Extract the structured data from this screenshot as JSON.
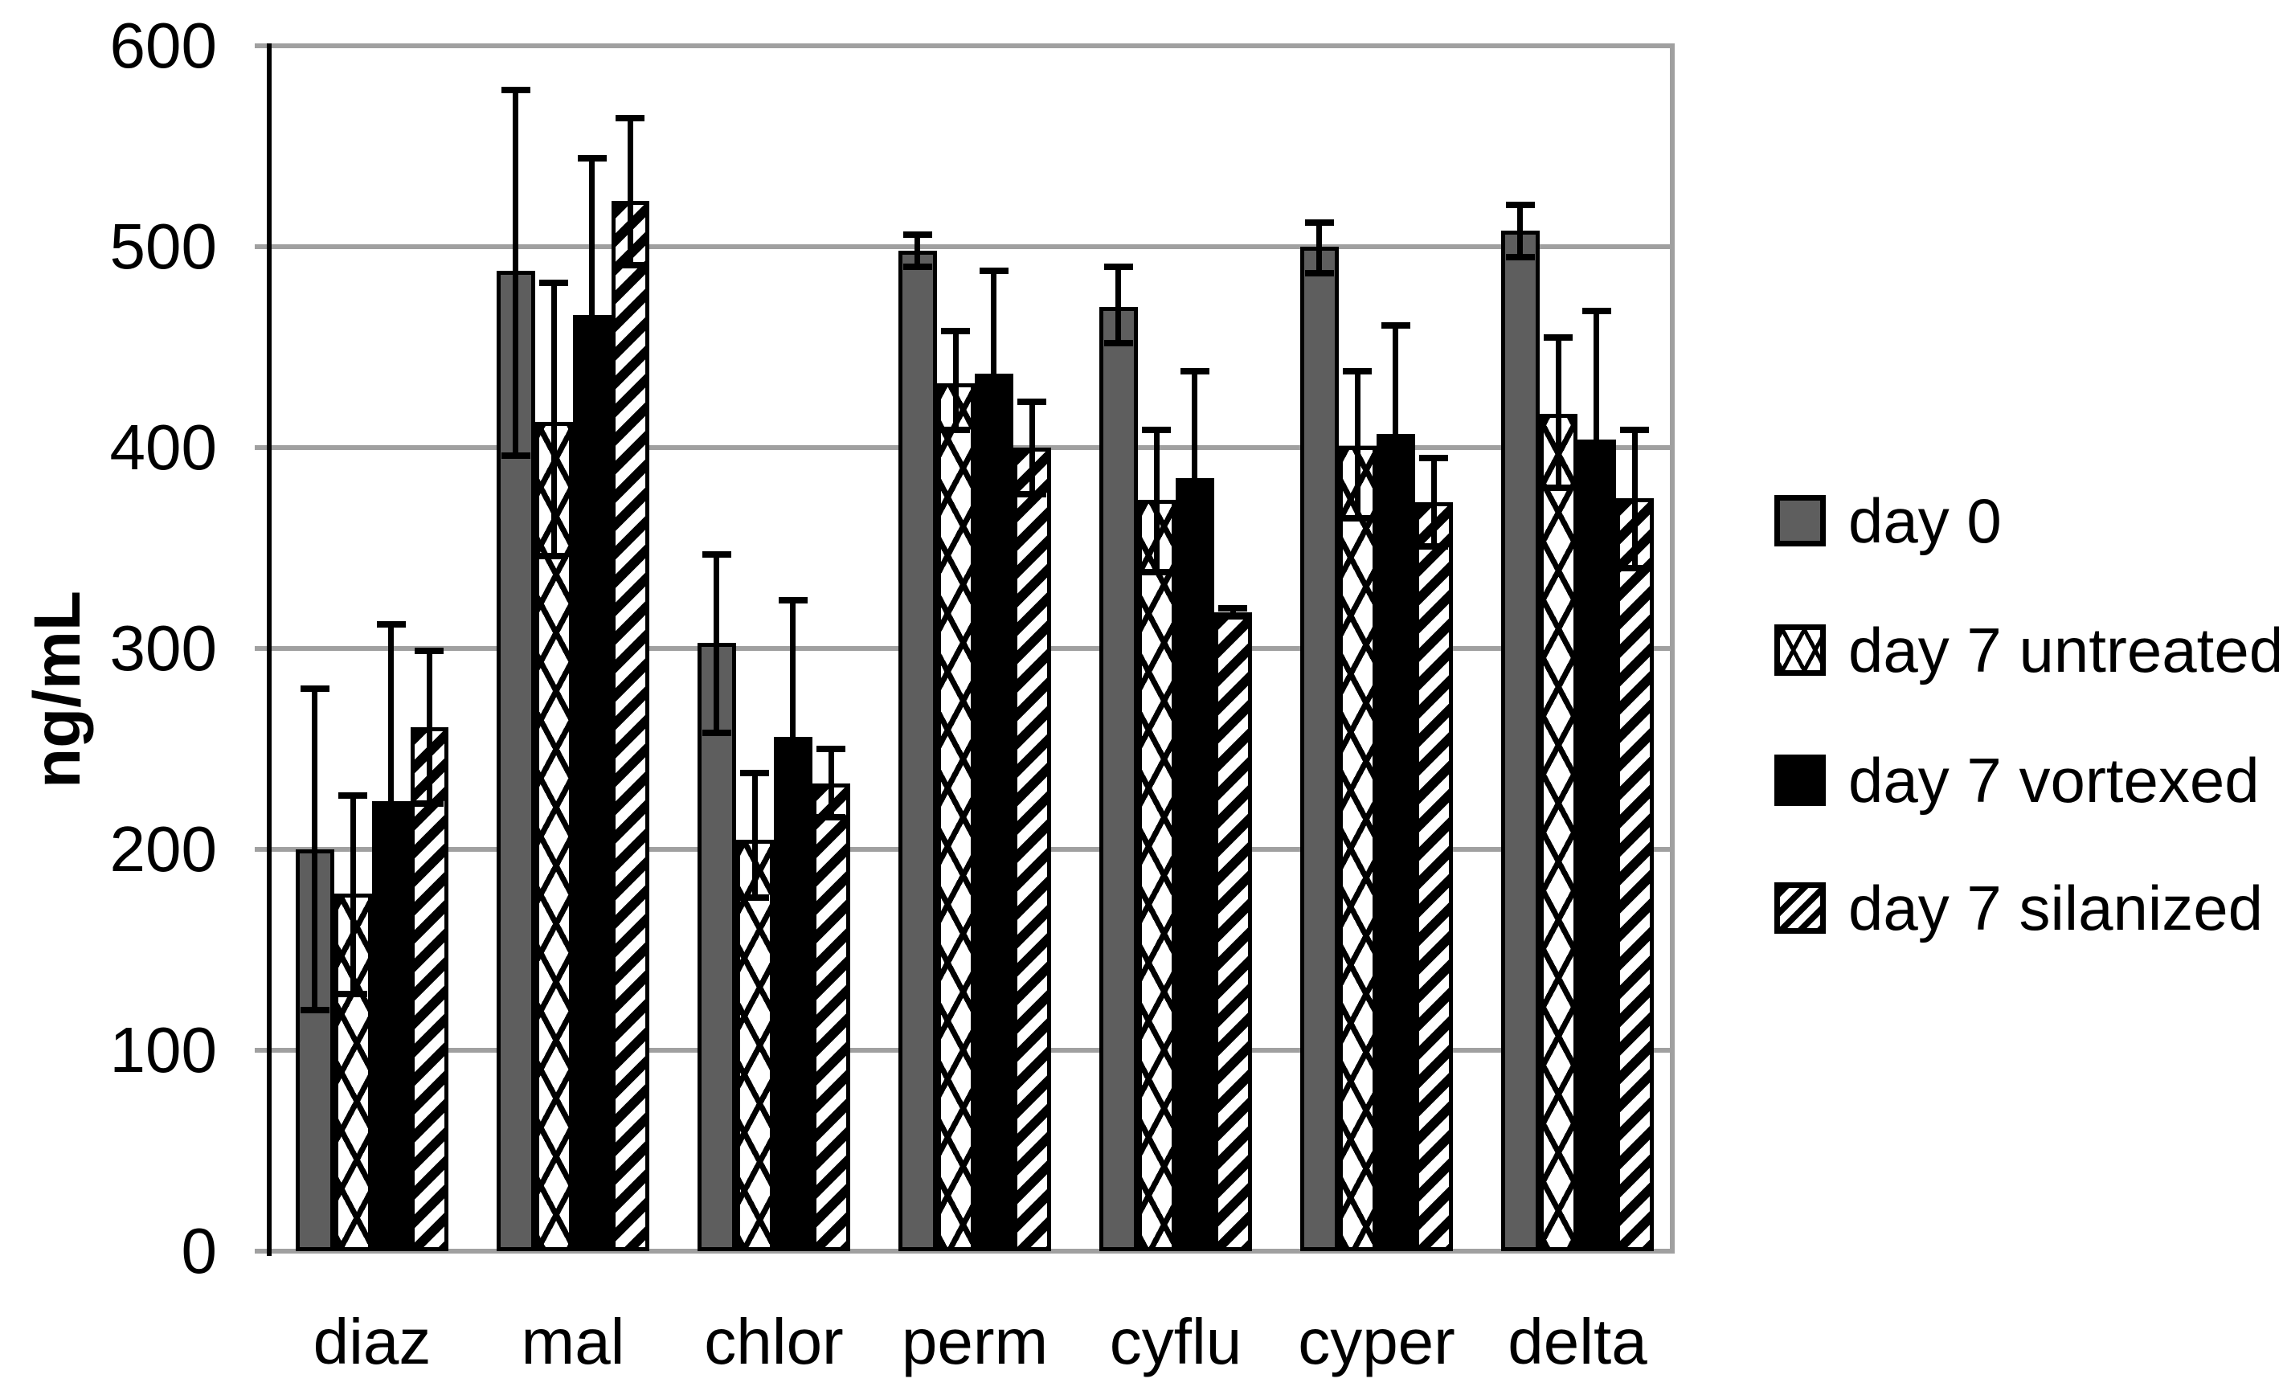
{
  "chart_data": {
    "type": "bar",
    "title": "",
    "xlabel": "",
    "ylabel": "ng/mL",
    "ylim": [
      0,
      600
    ],
    "yticks": [
      0,
      100,
      200,
      300,
      400,
      500,
      600
    ],
    "grid": true,
    "legend_position": "right",
    "categories": [
      "diaz",
      "mal",
      "chlor",
      "perm",
      "cyflu",
      "cyper",
      "delta"
    ],
    "series": [
      {
        "name": "day 0",
        "pattern": "solid-gray",
        "color": "#5e5e5e",
        "values": [
          200,
          488,
          303,
          498,
          470,
          500,
          508
        ],
        "err_up": [
          80,
          90,
          44,
          8,
          20,
          12,
          13
        ],
        "err_down": [
          80,
          92,
          45,
          8,
          18,
          13,
          13
        ]
      },
      {
        "name": "day 7 untreated",
        "pattern": "diamond-lattice",
        "color": "#ffffff",
        "values": [
          178,
          413,
          205,
          432,
          374,
          401,
          417
        ],
        "err_up": [
          49,
          69,
          33,
          26,
          35,
          37,
          38
        ],
        "err_down": [
          50,
          67,
          29,
          23,
          36,
          36,
          37
        ]
      },
      {
        "name": "day 7 vortexed",
        "pattern": "solid-black",
        "color": "#000000",
        "values": [
          224,
          466,
          256,
          437,
          385,
          407,
          404
        ],
        "err_up": [
          88,
          78,
          68,
          51,
          53,
          54,
          64
        ],
        "err_down": [
          88,
          78,
          68,
          51,
          53,
          54,
          64
        ]
      },
      {
        "name": "day 7 silanized",
        "pattern": "diagonal-stripes",
        "color": "#ffffff",
        "values": [
          261,
          523,
          233,
          400,
          318,
          373,
          375
        ],
        "err_up": [
          38,
          41,
          17,
          23,
          2,
          22,
          34
        ],
        "err_down": [
          38,
          32,
          17,
          23,
          2,
          22,
          35
        ]
      }
    ],
    "colors": {
      "grid": "#a0a0a0",
      "axis": "#000000",
      "bar_border": "#000000",
      "error_bar": "#000000"
    }
  }
}
